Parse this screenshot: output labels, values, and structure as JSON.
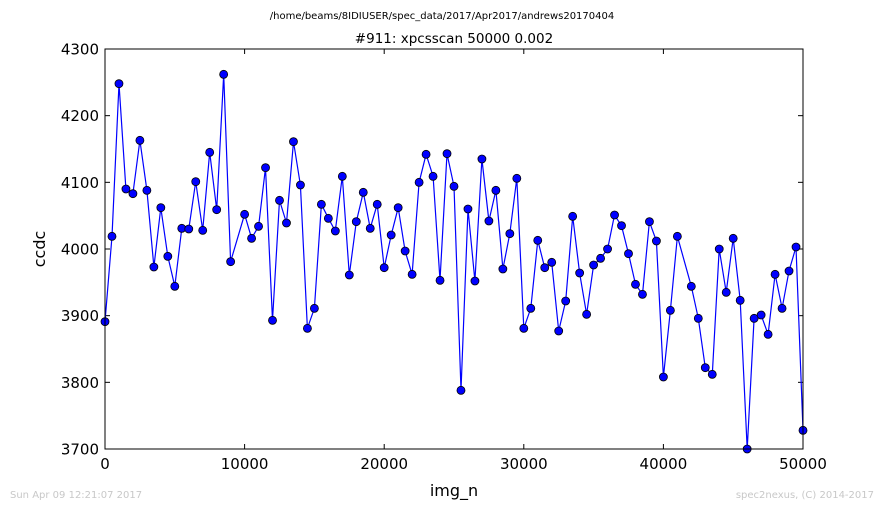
{
  "footer": {
    "timestamp": "Sun Apr 09 12:21:07 2017",
    "credit": "spec2nexus, (C) 2014-2017"
  },
  "chart_data": {
    "type": "line",
    "subtitle": "/home/beams/8IDIUSER/spec_data/2017/Apr2017/andrews20170404",
    "title": "#911: xpcsscan 50000 0.002",
    "xlabel": "img_n",
    "ylabel": "ccdc",
    "xlim": [
      0,
      50000
    ],
    "ylim": [
      3700,
      4300
    ],
    "xticks": [
      0,
      10000,
      20000,
      30000,
      40000,
      50000
    ],
    "yticks": [
      3700,
      3800,
      3900,
      4000,
      4100,
      4200,
      4300
    ],
    "grid": false,
    "marker": "circle",
    "colors": {
      "line": "#0000ff",
      "marker_edge": "#000000"
    },
    "series": [
      {
        "x": [
          0,
          500,
          1000,
          1500,
          2000,
          2500,
          3000,
          3500,
          4000,
          4500,
          5000,
          5500,
          6000,
          6500,
          7000,
          7500,
          8000,
          8500,
          9000,
          10000,
          10500,
          11000,
          11500,
          12000,
          12500,
          13000,
          13500,
          14000,
          14500,
          15000,
          15500,
          16000,
          16500,
          17000,
          17500,
          18000,
          18500,
          19000,
          19500,
          20000,
          20500,
          21000,
          21500,
          22000,
          22500,
          23000,
          23500,
          24000,
          24500,
          25000,
          25500,
          26000,
          26500,
          27000,
          27500,
          28000,
          28500,
          29000,
          29500,
          30000,
          30500,
          31000,
          31500,
          32000,
          32500,
          33000,
          33500,
          34000,
          34500,
          35000,
          35500,
          36000,
          36500,
          37000,
          37500,
          38000,
          38500,
          39000,
          39500,
          40000,
          40500,
          41000,
          42000,
          42500,
          43000,
          43500,
          44000,
          44500,
          45000,
          45500,
          46000,
          46500,
          47000,
          47500,
          48000,
          48500,
          49000,
          49500,
          50000
        ],
        "values": [
          3891,
          4019,
          4248,
          4090,
          4083,
          4163,
          4088,
          3973,
          4062,
          3989,
          3944,
          4031,
          4030,
          4101,
          4028,
          4145,
          4059,
          4262,
          3981,
          4052,
          4016,
          4034,
          4122,
          3893,
          4073,
          4039,
          4161,
          4096,
          3881,
          3911,
          4067,
          4046,
          4027,
          4109,
          3961,
          4041,
          4085,
          4031,
          4067,
          3972,
          4021,
          4062,
          3997,
          3962,
          4100,
          4142,
          4109,
          3953,
          4143,
          4094,
          3788,
          4060,
          3952,
          4135,
          4042,
          4088,
          3970,
          4023,
          4106,
          3881,
          3911,
          4013,
          3972,
          3980,
          3877,
          3922,
          4049,
          3964,
          3902,
          3976,
          3986,
          4000,
          4051,
          4035,
          3993,
          3947,
          3932,
          4041,
          4012,
          3808,
          3908,
          4019,
          3944,
          3896,
          3822,
          3812,
          4000,
          3935,
          4016,
          3923,
          3700,
          3896,
          3901,
          3872,
          3962,
          3911,
          3967,
          4003,
          3728
        ]
      }
    ]
  }
}
